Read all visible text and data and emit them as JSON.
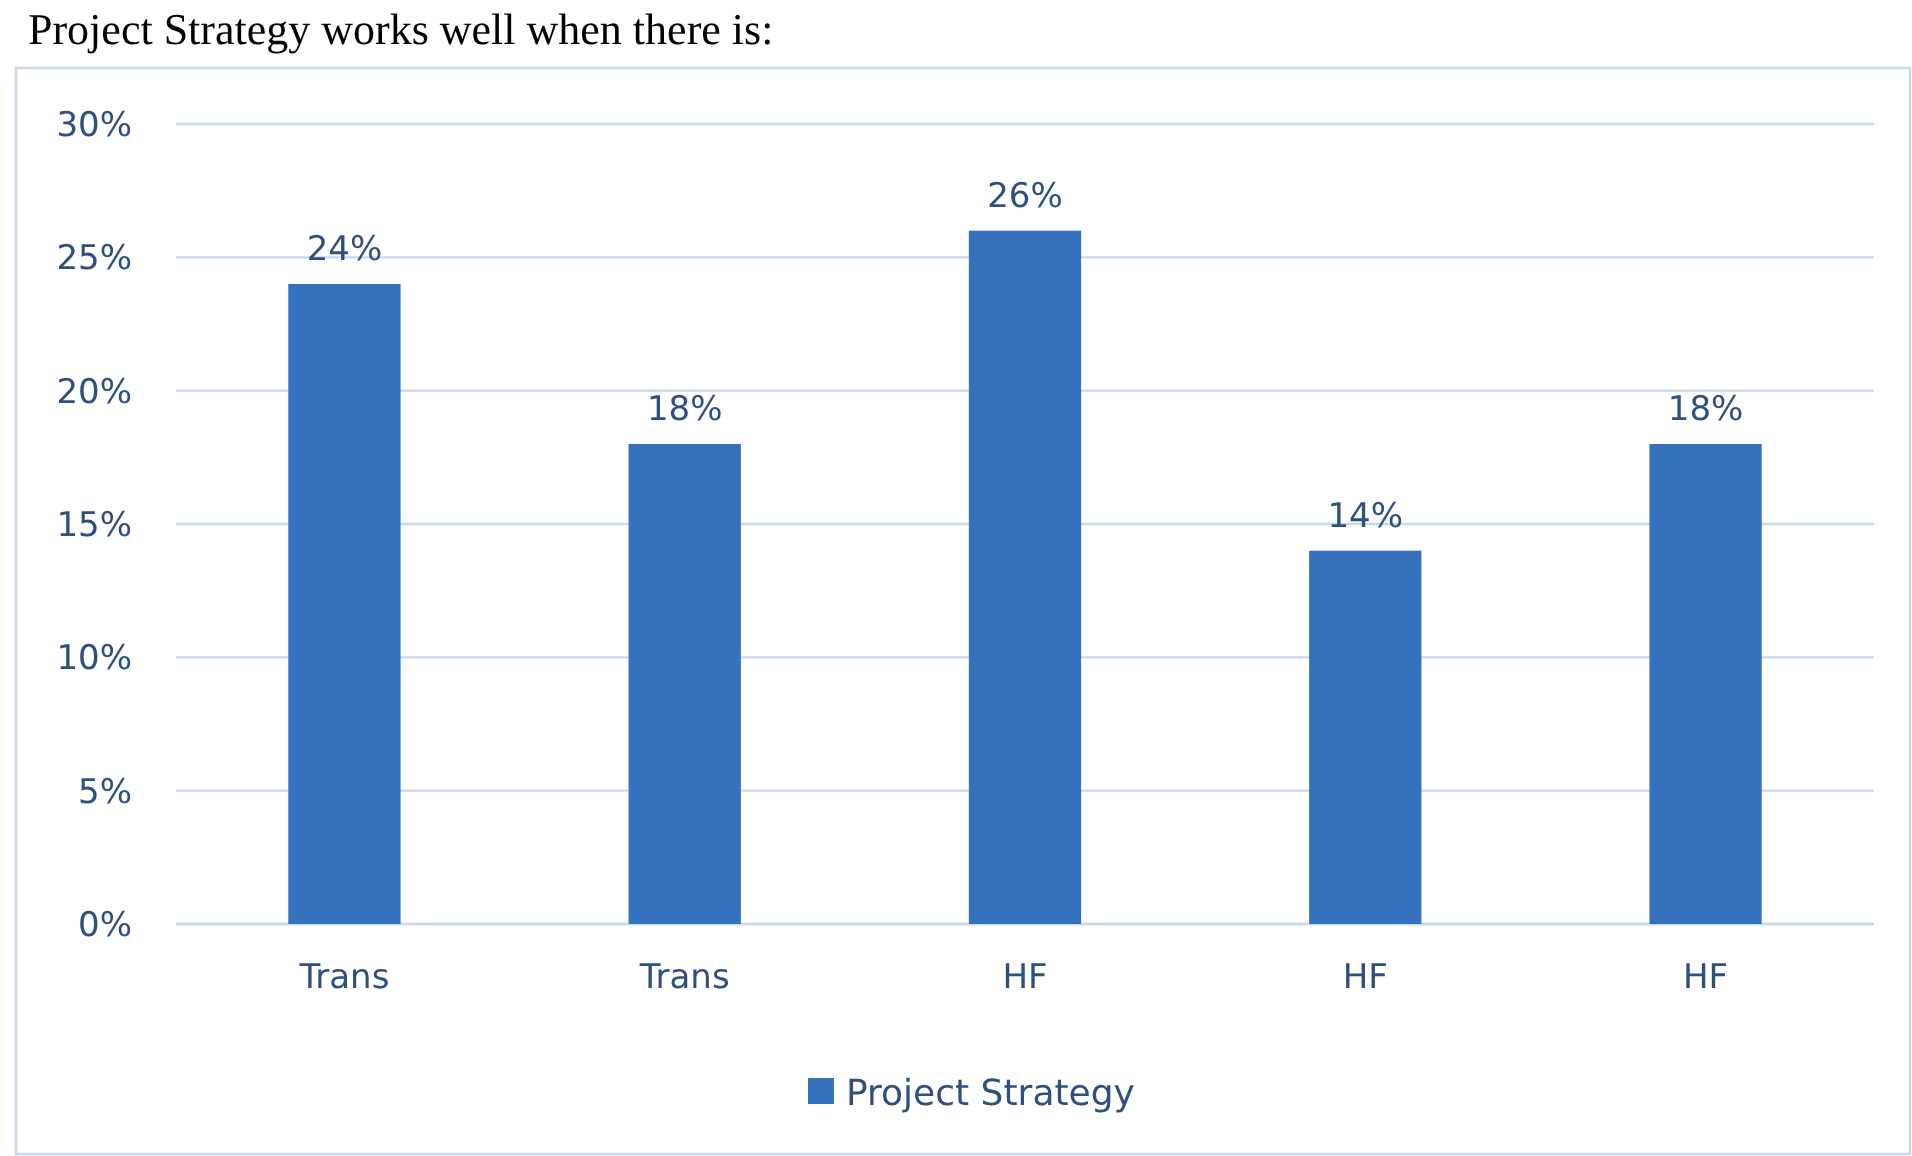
{
  "chart_data": {
    "type": "bar",
    "title": "Project Strategy works well when there is:",
    "categories": [
      "Trans",
      "Trans",
      "HF",
      "HF",
      "HF"
    ],
    "series": [
      {
        "name": "Project Strategy",
        "color": "#3571bd",
        "values": [
          24,
          18,
          26,
          14,
          18
        ],
        "value_labels": [
          "24%",
          "18%",
          "26%",
          "14%",
          "18%"
        ]
      }
    ],
    "ylim": [
      0,
      30
    ],
    "yticks": [
      {
        "value": 0,
        "label": "0%"
      },
      {
        "value": 5,
        "label": "5%"
      },
      {
        "value": 10,
        "label": "10%"
      },
      {
        "value": 15,
        "label": "15%"
      },
      {
        "value": 20,
        "label": "20%"
      },
      {
        "value": 25,
        "label": "25%"
      },
      {
        "value": 30,
        "label": "30%"
      }
    ],
    "grid": "y",
    "legend": "bottom"
  }
}
